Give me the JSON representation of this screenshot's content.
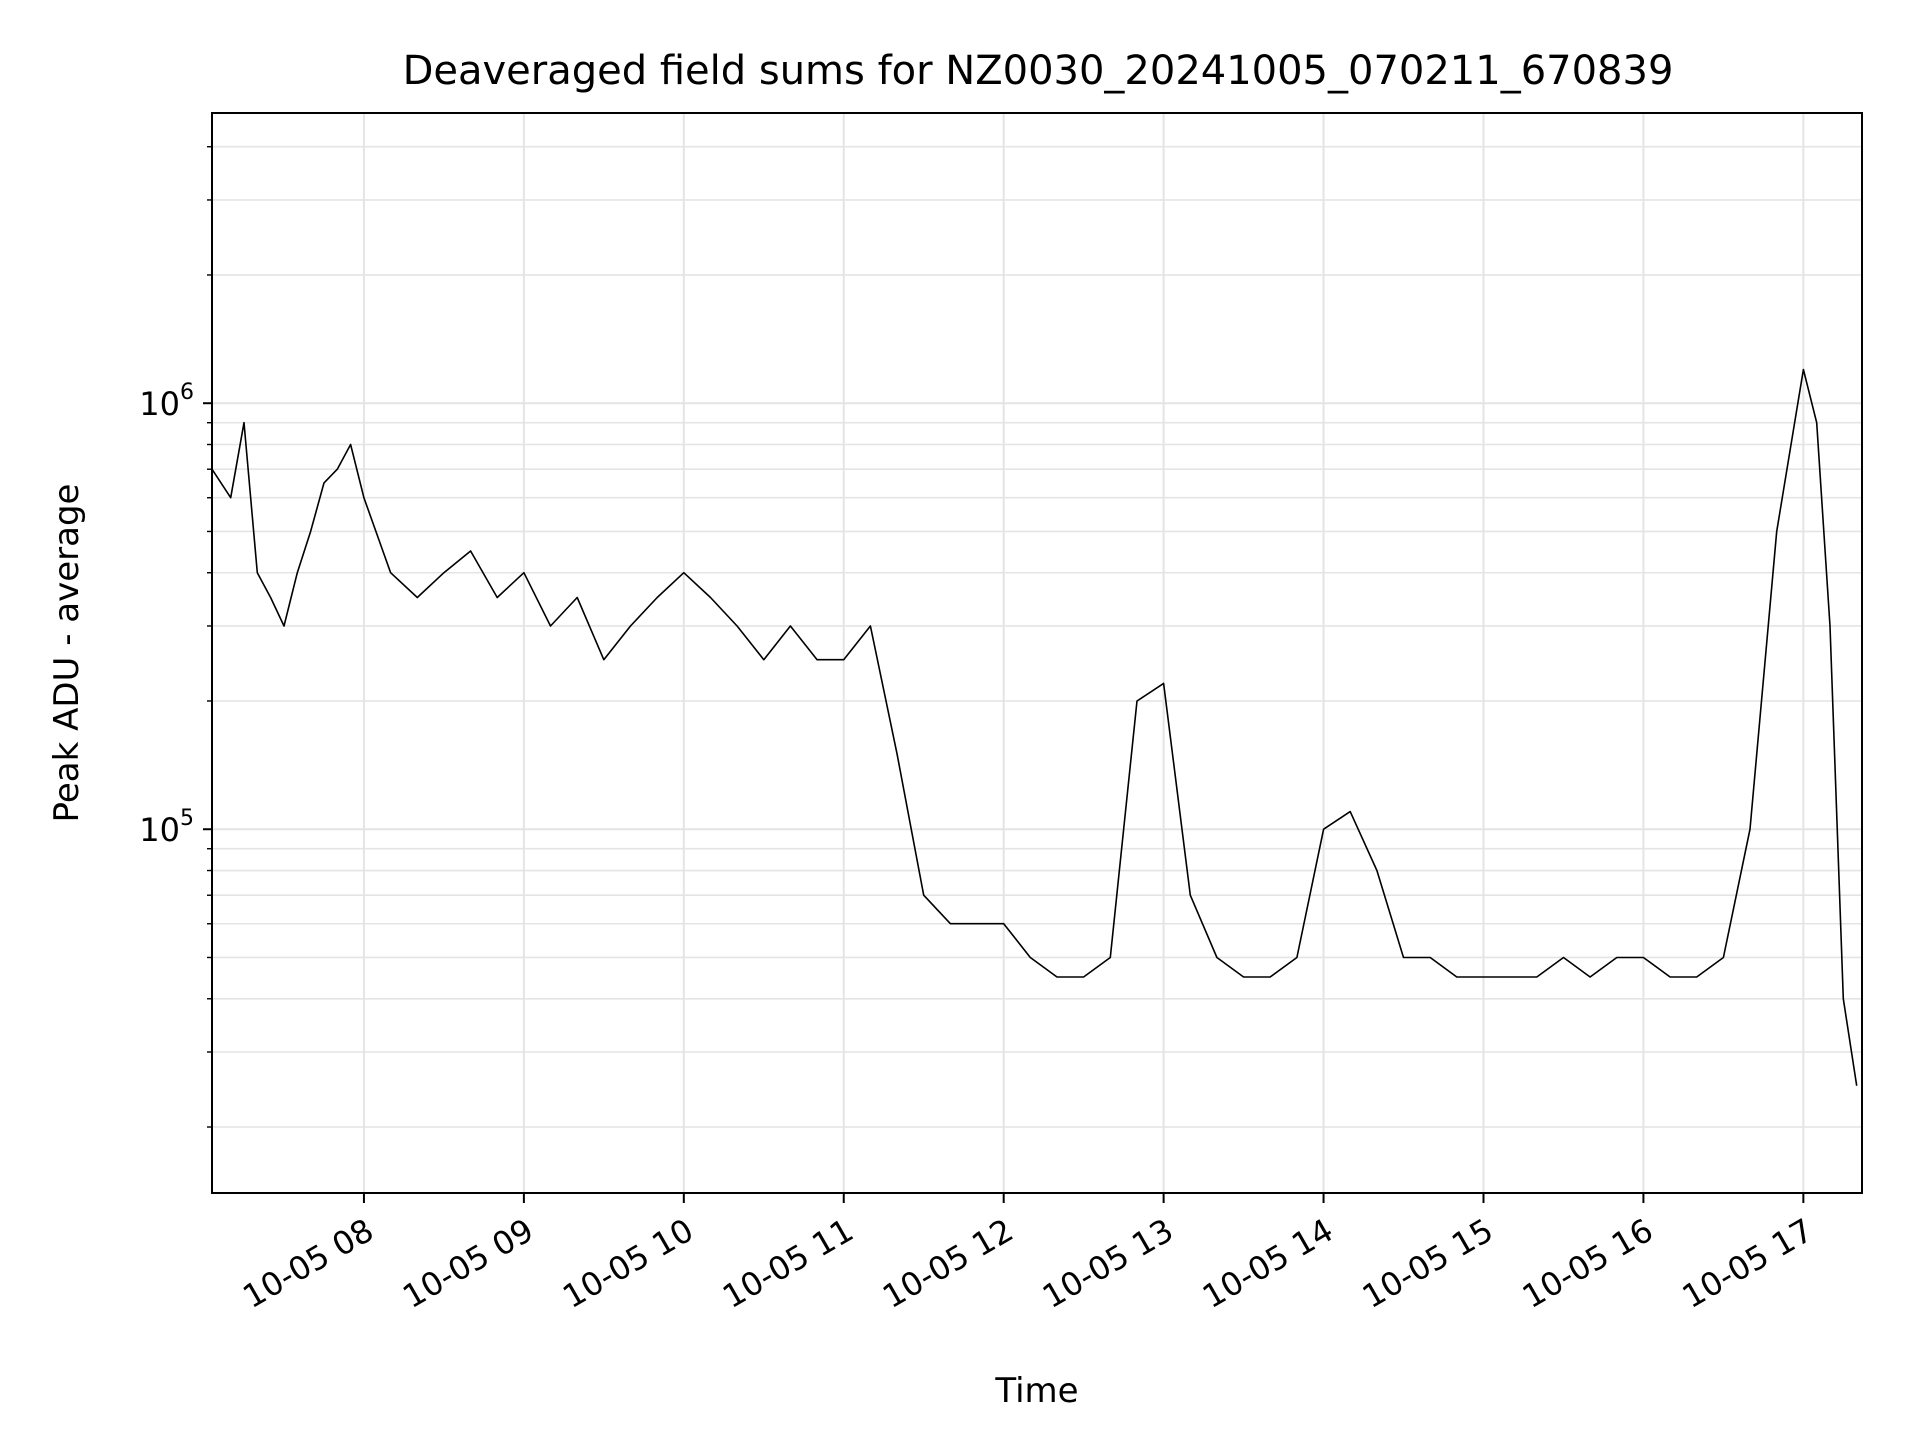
{
  "chart_data": {
    "type": "line",
    "title": "Deaveraged field sums for NZ0030_20241005_070211_670839",
    "xlabel": "Time",
    "ylabel": "Peak ADU - average",
    "yscale": "log",
    "ylim": [
      14000,
      4800000
    ],
    "xlim": [
      "2024-10-05 07:03",
      "2024-10-05 17:22"
    ],
    "grid": true,
    "line_color": "#000000",
    "x_ticks": [
      {
        "value": "2024-10-05 08:00",
        "label": "10-05 08"
      },
      {
        "value": "2024-10-05 09:00",
        "label": "10-05 09"
      },
      {
        "value": "2024-10-05 10:00",
        "label": "10-05 10"
      },
      {
        "value": "2024-10-05 11:00",
        "label": "10-05 11"
      },
      {
        "value": "2024-10-05 12:00",
        "label": "10-05 12"
      },
      {
        "value": "2024-10-05 13:00",
        "label": "10-05 13"
      },
      {
        "value": "2024-10-05 14:00",
        "label": "10-05 14"
      },
      {
        "value": "2024-10-05 15:00",
        "label": "10-05 15"
      },
      {
        "value": "2024-10-05 16:00",
        "label": "10-05 16"
      },
      {
        "value": "2024-10-05 17:00",
        "label": "10-05 17"
      }
    ],
    "y_ticks": [
      {
        "value": 100000,
        "base": "10",
        "exp": "5"
      },
      {
        "value": 1000000,
        "base": "10",
        "exp": "6"
      }
    ],
    "series": [
      {
        "x": [
          "2024-10-05 07:03",
          "2024-10-05 07:10",
          "2024-10-05 07:15",
          "2024-10-05 07:20",
          "2024-10-05 07:25",
          "2024-10-05 07:30",
          "2024-10-05 07:35",
          "2024-10-05 07:40",
          "2024-10-05 07:45",
          "2024-10-05 07:50",
          "2024-10-05 07:55",
          "2024-10-05 08:00",
          "2024-10-05 08:10",
          "2024-10-05 08:20",
          "2024-10-05 08:30",
          "2024-10-05 08:40",
          "2024-10-05 08:50",
          "2024-10-05 09:00",
          "2024-10-05 09:10",
          "2024-10-05 09:20",
          "2024-10-05 09:30",
          "2024-10-05 09:40",
          "2024-10-05 09:50",
          "2024-10-05 10:00",
          "2024-10-05 10:10",
          "2024-10-05 10:20",
          "2024-10-05 10:30",
          "2024-10-05 10:40",
          "2024-10-05 10:50",
          "2024-10-05 11:00",
          "2024-10-05 11:10",
          "2024-10-05 11:20",
          "2024-10-05 11:30",
          "2024-10-05 11:40",
          "2024-10-05 11:50",
          "2024-10-05 12:00",
          "2024-10-05 12:10",
          "2024-10-05 12:20",
          "2024-10-05 12:30",
          "2024-10-05 12:40",
          "2024-10-05 12:50",
          "2024-10-05 13:00",
          "2024-10-05 13:10",
          "2024-10-05 13:20",
          "2024-10-05 13:30",
          "2024-10-05 13:40",
          "2024-10-05 13:50",
          "2024-10-05 14:00",
          "2024-10-05 14:10",
          "2024-10-05 14:20",
          "2024-10-05 14:30",
          "2024-10-05 14:40",
          "2024-10-05 14:50",
          "2024-10-05 15:00",
          "2024-10-05 15:10",
          "2024-10-05 15:20",
          "2024-10-05 15:30",
          "2024-10-05 15:40",
          "2024-10-05 15:50",
          "2024-10-05 16:00",
          "2024-10-05 16:10",
          "2024-10-05 16:20",
          "2024-10-05 16:30",
          "2024-10-05 16:40",
          "2024-10-05 16:50",
          "2024-10-05 17:00",
          "2024-10-05 17:05",
          "2024-10-05 17:10",
          "2024-10-05 17:15",
          "2024-10-05 17:20"
        ],
        "y": [
          700000,
          600000,
          900000,
          400000,
          350000,
          300000,
          400000,
          500000,
          650000,
          700000,
          800000,
          600000,
          400000,
          350000,
          400000,
          450000,
          350000,
          400000,
          300000,
          350000,
          250000,
          300000,
          350000,
          400000,
          350000,
          300000,
          250000,
          300000,
          250000,
          250000,
          300000,
          150000,
          70000,
          60000,
          60000,
          60000,
          50000,
          45000,
          45000,
          50000,
          200000,
          220000,
          70000,
          50000,
          45000,
          45000,
          50000,
          100000,
          110000,
          80000,
          50000,
          50000,
          45000,
          45000,
          45000,
          45000,
          50000,
          45000,
          50000,
          50000,
          45000,
          45000,
          50000,
          100000,
          500000,
          1200000,
          900000,
          300000,
          40000,
          25000
        ]
      }
    ]
  }
}
